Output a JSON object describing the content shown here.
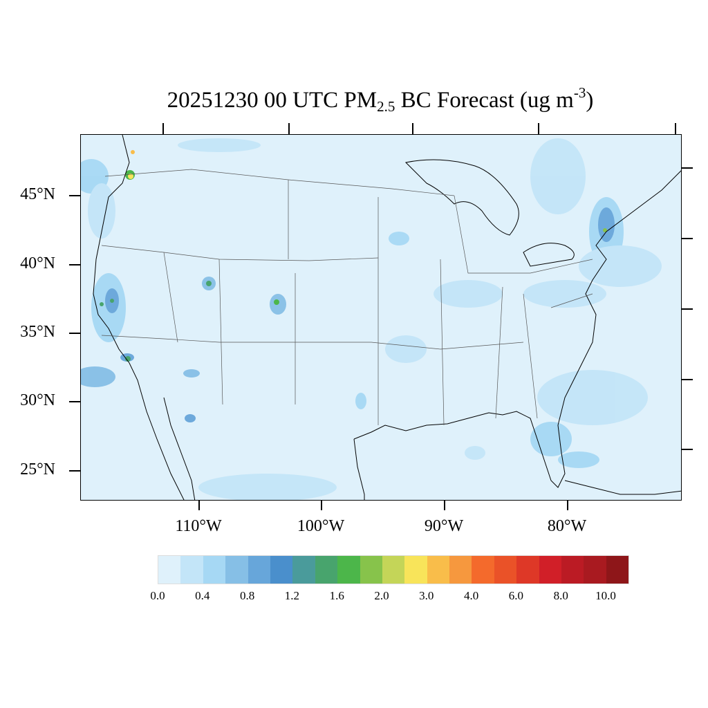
{
  "title": {
    "prefix": "20251230 00 UTC PM",
    "sub": "2.5",
    "middle": " BC Forecast (ug m",
    "sup": "-3",
    "suffix": ")"
  },
  "lat_labels": [
    "45°N",
    "40°N",
    "35°N",
    "30°N",
    "25°N"
  ],
  "lon_labels": [
    "110°W",
    "100°W",
    "90°W",
    "80°W"
  ],
  "colorbar": {
    "colors": [
      "#dff1fb",
      "#c3e5f8",
      "#a6d8f4",
      "#86bfe6",
      "#67a6da",
      "#4a8fcc",
      "#4a9b9b",
      "#48a46d",
      "#4cb64a",
      "#87c34b",
      "#c4d558",
      "#f8e45a",
      "#f9bd4a",
      "#f6983e",
      "#f46a2c",
      "#ea5228",
      "#de3827",
      "#d11f28",
      "#bb1b24",
      "#a91a20",
      "#8e1619"
    ],
    "labels": [
      "0.0",
      "0.4",
      "0.8",
      "1.2",
      "1.6",
      "2.0",
      "3.0",
      "4.0",
      "6.0",
      "8.0",
      "10.0"
    ]
  },
  "icons": [
    "coastline-outline",
    "state-boundary-lines"
  ]
}
